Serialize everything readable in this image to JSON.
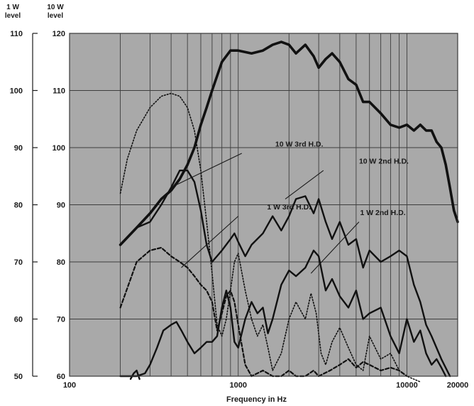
{
  "chart_data": {
    "type": "line",
    "xlabel": "Frequency in Hz",
    "x_scale": "log",
    "xlim": [
      100,
      20000
    ],
    "x_ticks": [
      {
        "value": 100,
        "label": "100"
      },
      {
        "value": 1000,
        "label": "1000"
      },
      {
        "value": 10000,
        "label": "10000"
      },
      {
        "value": 20000,
        "label": "20000"
      }
    ],
    "y_axes": [
      {
        "header": [
          "1 W",
          "level"
        ],
        "ylim": [
          50,
          110
        ],
        "ticks": [
          "50",
          "60",
          "70",
          "80",
          "90",
          "100",
          "110"
        ]
      },
      {
        "header": [
          "10 W",
          "level"
        ],
        "ylim": [
          60,
          120
        ],
        "ticks": [
          "60",
          "70",
          "80",
          "90",
          "100",
          "110",
          "120"
        ]
      }
    ],
    "grid": true,
    "background": "#a9a9a9",
    "line_color": "#111111",
    "series": [
      {
        "style": "solid-thick",
        "scale": "10W",
        "points": [
          [
            200,
            83
          ],
          [
            250,
            86
          ],
          [
            300,
            88.5
          ],
          [
            350,
            91
          ],
          [
            400,
            92.5
          ],
          [
            450,
            94.5
          ],
          [
            500,
            97
          ],
          [
            550,
            100
          ],
          [
            600,
            104
          ],
          [
            650,
            107
          ],
          [
            700,
            110
          ],
          [
            800,
            115
          ],
          [
            900,
            117
          ],
          [
            1000,
            117
          ],
          [
            1200,
            116.5
          ],
          [
            1400,
            117
          ],
          [
            1600,
            118
          ],
          [
            1800,
            118.5
          ],
          [
            2000,
            118
          ],
          [
            2200,
            116.5
          ],
          [
            2500,
            118
          ],
          [
            2800,
            116
          ],
          [
            3000,
            114
          ],
          [
            3300,
            115.5
          ],
          [
            3600,
            116.5
          ],
          [
            4000,
            115
          ],
          [
            4500,
            112
          ],
          [
            5000,
            111
          ],
          [
            5500,
            108
          ],
          [
            6000,
            108
          ],
          [
            7000,
            106
          ],
          [
            8000,
            104
          ],
          [
            9000,
            103.5
          ],
          [
            10000,
            104
          ],
          [
            11000,
            103
          ],
          [
            12000,
            104
          ],
          [
            13000,
            103
          ],
          [
            14000,
            103
          ],
          [
            15000,
            101
          ],
          [
            16000,
            100
          ],
          [
            17000,
            97
          ],
          [
            18000,
            93
          ],
          [
            19000,
            89
          ],
          [
            20000,
            87
          ]
        ]
      },
      {
        "style": "solid-medium",
        "scale": "10W",
        "points": [
          [
            200,
            83
          ],
          [
            250,
            86
          ],
          [
            300,
            87
          ],
          [
            350,
            90
          ],
          [
            400,
            93
          ],
          [
            450,
            96
          ],
          [
            500,
            96
          ],
          [
            550,
            94
          ],
          [
            600,
            89
          ],
          [
            650,
            83
          ],
          [
            700,
            80
          ],
          [
            800,
            82
          ],
          [
            900,
            84
          ],
          [
            950,
            85
          ],
          [
            1000,
            83.5
          ],
          [
            1100,
            81
          ],
          [
            1200,
            83
          ],
          [
            1400,
            85
          ],
          [
            1600,
            88
          ],
          [
            1800,
            85.5
          ],
          [
            2000,
            88
          ],
          [
            2200,
            91
          ],
          [
            2500,
            91.5
          ],
          [
            2800,
            88.5
          ],
          [
            3000,
            91
          ],
          [
            3300,
            87
          ],
          [
            3600,
            84
          ],
          [
            4000,
            87
          ],
          [
            4500,
            83
          ],
          [
            5000,
            84
          ],
          [
            5500,
            79
          ],
          [
            6000,
            82
          ],
          [
            7000,
            80
          ],
          [
            8000,
            81
          ],
          [
            9000,
            82
          ],
          [
            10000,
            81
          ],
          [
            11000,
            76
          ],
          [
            12000,
            73
          ],
          [
            13000,
            69
          ],
          [
            14000,
            67
          ],
          [
            16000,
            63
          ],
          [
            18000,
            60
          ]
        ]
      },
      {
        "style": "dotted",
        "scale": "10W",
        "points": [
          [
            200,
            92
          ],
          [
            220,
            98
          ],
          [
            250,
            103
          ],
          [
            300,
            107
          ],
          [
            350,
            109
          ],
          [
            400,
            109.5
          ],
          [
            450,
            109
          ],
          [
            500,
            107
          ],
          [
            550,
            103
          ],
          [
            600,
            96
          ],
          [
            650,
            87
          ],
          [
            700,
            78
          ],
          [
            750,
            69
          ],
          [
            800,
            67
          ],
          [
            850,
            70
          ],
          [
            900,
            75
          ],
          [
            950,
            80
          ],
          [
            1000,
            81.5
          ],
          [
            1100,
            75
          ],
          [
            1200,
            70
          ],
          [
            1300,
            67
          ],
          [
            1400,
            69
          ],
          [
            1500,
            65
          ],
          [
            1600,
            61
          ],
          [
            1800,
            64
          ],
          [
            2000,
            70
          ],
          [
            2200,
            73
          ],
          [
            2500,
            70
          ],
          [
            2700,
            74.5
          ],
          [
            2900,
            71
          ],
          [
            3100,
            64
          ],
          [
            3300,
            62
          ],
          [
            3600,
            66
          ],
          [
            4000,
            68.5
          ],
          [
            4500,
            65
          ],
          [
            5000,
            62
          ],
          [
            5500,
            61
          ],
          [
            6000,
            67
          ],
          [
            7000,
            63
          ],
          [
            8000,
            64
          ],
          [
            9000,
            61
          ],
          [
            10000,
            60
          ],
          [
            12000,
            59
          ]
        ]
      },
      {
        "style": "dashed",
        "scale": "1W",
        "points": [
          [
            200,
            62
          ],
          [
            250,
            70
          ],
          [
            300,
            72
          ],
          [
            350,
            72.5
          ],
          [
            400,
            71
          ],
          [
            450,
            70
          ],
          [
            500,
            69
          ],
          [
            550,
            67.5
          ],
          [
            600,
            66
          ],
          [
            650,
            65
          ],
          [
            700,
            63
          ],
          [
            750,
            58
          ],
          [
            800,
            61
          ],
          [
            850,
            64
          ],
          [
            900,
            65
          ],
          [
            950,
            63
          ],
          [
            1000,
            59
          ],
          [
            1100,
            52
          ],
          [
            1200,
            50
          ],
          [
            1400,
            51
          ],
          [
            1600,
            50
          ],
          [
            1800,
            50
          ],
          [
            2000,
            51
          ],
          [
            2200,
            50
          ],
          [
            2500,
            50
          ],
          [
            2800,
            51
          ],
          [
            3000,
            50
          ],
          [
            3500,
            51
          ],
          [
            4000,
            52
          ],
          [
            4500,
            53
          ],
          [
            5000,
            51.5
          ],
          [
            5500,
            52.5
          ],
          [
            6000,
            52
          ],
          [
            7000,
            51
          ],
          [
            8000,
            51.5
          ],
          [
            9000,
            51
          ],
          [
            10000,
            50
          ]
        ]
      },
      {
        "style": "solid-medium",
        "scale": "1W",
        "points": [
          [
            200,
            50
          ],
          [
            230,
            50
          ],
          [
            250,
            50
          ],
          [
            280,
            50.5
          ],
          [
            300,
            52
          ],
          [
            330,
            55
          ],
          [
            360,
            58
          ],
          [
            400,
            59
          ],
          [
            430,
            59.5
          ],
          [
            460,
            58
          ],
          [
            500,
            56
          ],
          [
            550,
            54
          ],
          [
            600,
            55
          ],
          [
            650,
            56
          ],
          [
            700,
            56
          ],
          [
            750,
            57
          ],
          [
            800,
            62
          ],
          [
            850,
            65
          ],
          [
            900,
            62
          ],
          [
            950,
            56
          ],
          [
            1000,
            55
          ],
          [
            1100,
            60
          ],
          [
            1200,
            63
          ],
          [
            1300,
            61
          ],
          [
            1400,
            62
          ],
          [
            1500,
            57.5
          ],
          [
            1600,
            60
          ],
          [
            1800,
            66
          ],
          [
            2000,
            68.5
          ],
          [
            2200,
            67.5
          ],
          [
            2500,
            69
          ],
          [
            2800,
            72
          ],
          [
            3000,
            71
          ],
          [
            3300,
            65
          ],
          [
            3600,
            67
          ],
          [
            4000,
            64
          ],
          [
            4500,
            62
          ],
          [
            5000,
            65
          ],
          [
            5500,
            60
          ],
          [
            6000,
            61
          ],
          [
            7000,
            62
          ],
          [
            8000,
            57
          ],
          [
            9000,
            54
          ],
          [
            10000,
            60
          ],
          [
            11000,
            56
          ],
          [
            12000,
            58
          ],
          [
            13000,
            54
          ],
          [
            14000,
            52
          ],
          [
            15000,
            53
          ],
          [
            16000,
            51.5
          ],
          [
            17000,
            50
          ]
        ]
      },
      {
        "style": "solid-medium",
        "scale": "1W",
        "points": [
          [
            230,
            49.5
          ],
          [
            240,
            50.5
          ],
          [
            250,
            51
          ],
          [
            260,
            49.5
          ]
        ]
      }
    ],
    "annotations": [
      {
        "label": "10 W 3rd H.D.",
        "text_at": [
          2300,
          100.2
        ],
        "arrow_from": [
          1050,
          99
        ],
        "arrow_to": [
          430,
          93.5
        ]
      },
      {
        "label": "10 W 2nd H.D.",
        "text_at": [
          7300,
          97.2
        ],
        "arrow_from": [
          3200,
          96
        ],
        "arrow_to": [
          1900,
          91
        ]
      },
      {
        "label": "1 W 3rd H.D.",
        "text_at": [
          2000,
          89.2
        ],
        "arrow_from": [
          1000,
          88
        ],
        "arrow_to": [
          460,
          79
        ]
      },
      {
        "label": "1 W 2nd H.D.",
        "text_at": [
          7200,
          88.2
        ],
        "arrow_from": [
          5200,
          87
        ],
        "arrow_to": [
          2700,
          78
        ]
      }
    ]
  }
}
